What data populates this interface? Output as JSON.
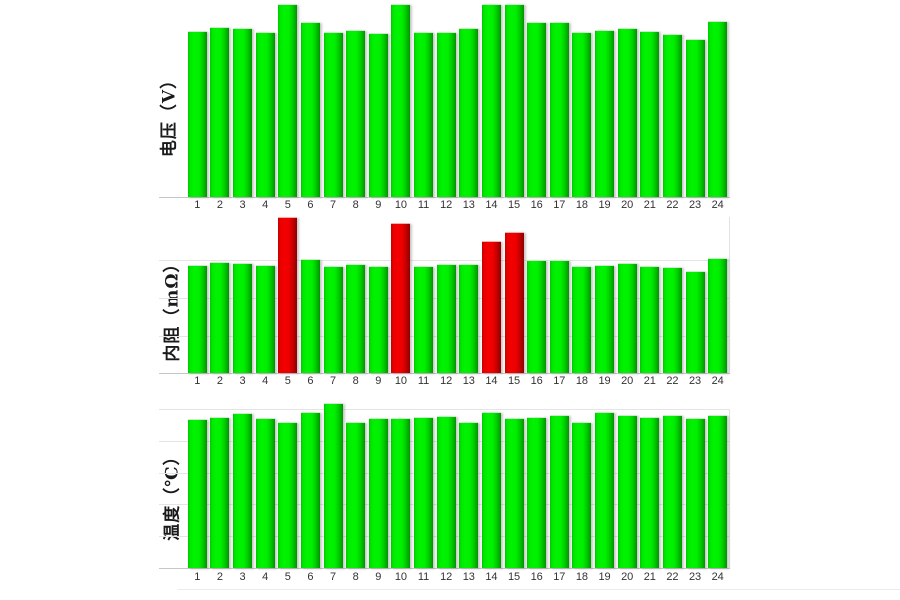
{
  "colors": {
    "bar_normal_green": "#00e800",
    "bar_alert_red": "#e80000",
    "gridline": "#e4e4e4",
    "axis_line": "#c6c6c6",
    "background": "#ffffff",
    "tick_text": "#333333"
  },
  "chart_data": [
    {
      "type": "bar",
      "ylabel": "电压（V）",
      "xlabel": "",
      "title": "",
      "unit_note": "no y-axis scale shown; values are bar heights as percent of plot height",
      "categories": [
        "1",
        "2",
        "3",
        "4",
        "5",
        "6",
        "7",
        "8",
        "9",
        "10",
        "11",
        "12",
        "13",
        "14",
        "15",
        "16",
        "17",
        "18",
        "19",
        "20",
        "21",
        "22",
        "23",
        "24"
      ],
      "values": [
        85.9,
        88.0,
        87.5,
        85.4,
        100,
        90.6,
        85.4,
        86.5,
        84.9,
        100,
        85.4,
        85.4,
        87.5,
        100,
        100,
        90.6,
        90.6,
        85.4,
        86.5,
        87.5,
        85.9,
        84.4,
        81.8,
        91.1
      ],
      "alert_cells": [],
      "bar_color": "#00e800",
      "alert_color": "#e80000",
      "grid_visible": false,
      "legend": null
    },
    {
      "type": "bar",
      "ylabel": "内阻（mΩ）",
      "xlabel": "",
      "title": "",
      "unit_note": "no y-axis scale shown; values are bar heights as percent of plot height",
      "categories": [
        "1",
        "2",
        "3",
        "4",
        "5",
        "6",
        "7",
        "8",
        "9",
        "10",
        "11",
        "12",
        "13",
        "14",
        "15",
        "16",
        "17",
        "18",
        "19",
        "20",
        "21",
        "22",
        "23",
        "24"
      ],
      "values": [
        68.6,
        70.5,
        69.9,
        68.6,
        99.4,
        72.4,
        67.9,
        69.2,
        67.9,
        95.5,
        67.9,
        69.2,
        69.2,
        84.0,
        89.7,
        71.8,
        71.8,
        67.9,
        68.6,
        69.9,
        67.9,
        67.3,
        64.7,
        73.1
      ],
      "alert_cells": [
        5,
        10,
        14,
        15
      ],
      "bar_color": "#00e800",
      "alert_color": "#e80000",
      "grid_visible": true,
      "legend": null
    },
    {
      "type": "bar",
      "ylabel": "温度（℃）",
      "xlabel": "",
      "title": "",
      "unit_note": "no y-axis scale shown; values are bar heights as percent of plot height",
      "categories": [
        "1",
        "2",
        "3",
        "4",
        "5",
        "6",
        "7",
        "8",
        "9",
        "10",
        "11",
        "12",
        "13",
        "14",
        "15",
        "16",
        "17",
        "18",
        "19",
        "20",
        "21",
        "22",
        "23",
        "24"
      ],
      "values": [
        93.1,
        94.3,
        96.9,
        93.7,
        91.2,
        97.5,
        103.1,
        91.2,
        93.7,
        93.7,
        94.3,
        95.0,
        91.2,
        97.5,
        93.7,
        94.3,
        95.6,
        91.2,
        97.5,
        95.6,
        94.3,
        95.6,
        93.7,
        95.6
      ],
      "alert_cells": [],
      "bar_color": "#00e800",
      "alert_color": "#e80000",
      "grid_visible": true,
      "legend": null
    }
  ]
}
